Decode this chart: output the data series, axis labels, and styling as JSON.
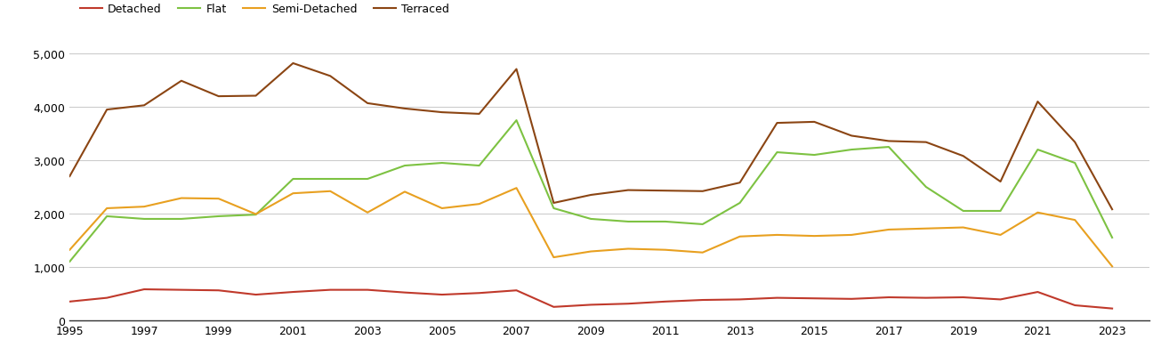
{
  "years": [
    1995,
    1996,
    1997,
    1998,
    1999,
    2000,
    2001,
    2002,
    2003,
    2004,
    2005,
    2006,
    2007,
    2008,
    2009,
    2010,
    2011,
    2012,
    2013,
    2014,
    2015,
    2016,
    2017,
    2018,
    2019,
    2020,
    2021,
    2022,
    2023
  ],
  "detached": [
    350,
    420,
    580,
    570,
    560,
    480,
    530,
    570,
    570,
    520,
    480,
    510,
    560,
    250,
    290,
    310,
    350,
    380,
    390,
    420,
    410,
    400,
    430,
    420,
    430,
    390,
    530,
    280,
    220
  ],
  "flat": [
    1100,
    1950,
    1900,
    1900,
    1950,
    1980,
    2650,
    2650,
    2650,
    2900,
    2950,
    2900,
    3750,
    2100,
    1900,
    1850,
    1850,
    1800,
    2200,
    3150,
    3100,
    3200,
    3250,
    2500,
    2050,
    2050,
    3200,
    2950,
    1550
  ],
  "semi_detached": [
    1320,
    2100,
    2130,
    2290,
    2280,
    1990,
    2380,
    2420,
    2020,
    2410,
    2100,
    2180,
    2480,
    1180,
    1290,
    1340,
    1320,
    1270,
    1570,
    1600,
    1580,
    1600,
    1700,
    1720,
    1740,
    1600,
    2020,
    1880,
    1010
  ],
  "terraced": [
    2700,
    3950,
    4030,
    4490,
    4200,
    4210,
    4820,
    4580,
    4070,
    3970,
    3900,
    3870,
    4710,
    2200,
    2350,
    2440,
    2430,
    2420,
    2580,
    3700,
    3720,
    3460,
    3360,
    3340,
    3080,
    2600,
    4100,
    3340,
    2080
  ],
  "colors": {
    "detached": "#c0392b",
    "flat": "#7dc242",
    "semi_detached": "#e8a020",
    "terraced": "#8B4513"
  },
  "legend_labels": [
    "Detached",
    "Flat",
    "Semi-Detached",
    "Terraced"
  ],
  "xlim": [
    1995,
    2024
  ],
  "ylim": [
    0,
    5200
  ],
  "yticks": [
    0,
    1000,
    2000,
    3000,
    4000,
    5000
  ],
  "xticks": [
    1995,
    1997,
    1999,
    2001,
    2003,
    2005,
    2007,
    2009,
    2011,
    2013,
    2015,
    2017,
    2019,
    2021,
    2023
  ],
  "background_color": "#ffffff",
  "grid_color": "#cccccc",
  "linewidth": 1.5
}
